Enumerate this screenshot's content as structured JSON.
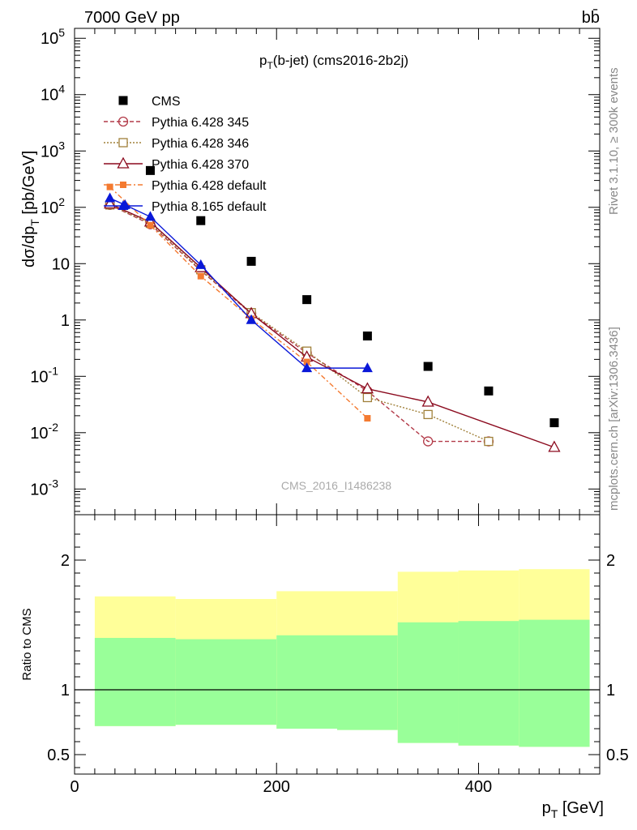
{
  "header": {
    "beam": "7000 GeV pp",
    "process": "bb̄",
    "side_label_rivet": "Rivet 3.1.10, ≥ 300k events",
    "side_label_mcplots": "mcplots.cern.ch [arXiv:1306.3436]",
    "watermark": "CMS_2016_I1486238"
  },
  "colors": {
    "CMS": "#000000",
    "p345": "#b23a48",
    "p346": "#a0803a",
    "p370": "#8b0a1e",
    "pdef": "#f47a30",
    "p8": "#0a18d8",
    "band_yellow": "#ffff99",
    "band_green": "#99ff99"
  },
  "chart_data": [
    {
      "type": "scatter",
      "title": "p_T(b-jet) (cms2016-2b2j)",
      "xlabel": "p_T [GeV]",
      "ylabel": "dσ/dp_T [pb/GeV]",
      "xlim": [
        0,
        520
      ],
      "ylim": [
        0.00035,
        150000
      ],
      "yscale": "log",
      "ytick_labels": [
        "10^-3",
        "10^-2",
        "10^-1",
        "1",
        "10",
        "10^2",
        "10^3",
        "10^4",
        "10^5"
      ],
      "xtick_labels": [
        "0",
        "200",
        "400"
      ],
      "legend": [
        "CMS",
        "Pythia 6.428 345",
        "Pythia 6.428 346",
        "Pythia 6.428 370",
        "Pythia 6.428 default",
        "Pythia 8.165 default"
      ],
      "series": [
        {
          "name": "CMS",
          "x": [
            75,
            125,
            175,
            230,
            290,
            350,
            410,
            475
          ],
          "y": [
            450,
            58,
            11,
            2.3,
            0.52,
            0.15,
            0.055,
            0.015
          ]
        },
        {
          "name": "Pythia 6.428 345",
          "x": [
            35,
            75,
            125,
            175,
            230,
            290,
            350,
            410
          ],
          "y": [
            110,
            50,
            7.5,
            1.3,
            0.26,
            0.055,
            0.007,
            0.007
          ]
        },
        {
          "name": "Pythia 6.428 346",
          "x": [
            35,
            75,
            125,
            175,
            230,
            290,
            350,
            410
          ],
          "y": [
            110,
            52,
            7.8,
            1.35,
            0.28,
            0.042,
            0.021,
            0.007
          ]
        },
        {
          "name": "Pythia 6.428 370",
          "x": [
            35,
            75,
            125,
            175,
            230,
            290,
            350,
            475
          ],
          "y": [
            115,
            55,
            8.5,
            1.3,
            0.22,
            0.06,
            0.035,
            0.0055
          ]
        },
        {
          "name": "Pythia 6.428 default",
          "x": [
            35,
            75,
            125,
            175,
            230,
            290
          ],
          "y": [
            230,
            48,
            6.0,
            1.05,
            0.18,
            0.018
          ]
        },
        {
          "name": "Pythia 8.165 default",
          "x": [
            35,
            50,
            75,
            125,
            175,
            230,
            290
          ],
          "y": [
            145,
            110,
            68,
            9.5,
            1.0,
            0.14,
            0.14
          ]
        }
      ]
    },
    {
      "type": "area",
      "ylabel": "Ratio to CMS",
      "xlim": [
        0,
        520
      ],
      "ylim": [
        0.35,
        2.35
      ],
      "ytick_labels": [
        "0.5",
        "1",
        "2"
      ],
      "reference_line": 1,
      "bins": [
        {
          "lo": 20,
          "hi": 100,
          "yellow": [
            0.72,
            1.72
          ],
          "green": [
            0.72,
            1.4
          ]
        },
        {
          "lo": 100,
          "hi": 200,
          "yellow": [
            0.73,
            1.7
          ],
          "green": [
            0.73,
            1.39
          ]
        },
        {
          "lo": 200,
          "hi": 260,
          "yellow": [
            0.7,
            1.76
          ],
          "green": [
            0.7,
            1.42
          ]
        },
        {
          "lo": 260,
          "hi": 320,
          "yellow": [
            0.69,
            1.76
          ],
          "green": [
            0.69,
            1.42
          ]
        },
        {
          "lo": 320,
          "hi": 380,
          "yellow": [
            0.59,
            1.91
          ],
          "green": [
            0.59,
            1.52
          ]
        },
        {
          "lo": 380,
          "hi": 440,
          "yellow": [
            0.57,
            1.92
          ],
          "green": [
            0.57,
            1.53
          ]
        },
        {
          "lo": 440,
          "hi": 510,
          "yellow": [
            0.56,
            1.93
          ],
          "green": [
            0.56,
            1.54
          ]
        }
      ]
    }
  ]
}
